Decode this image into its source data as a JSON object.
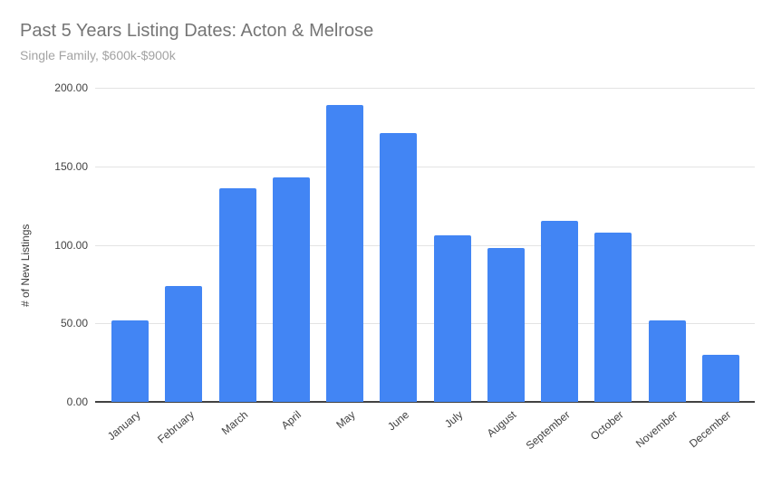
{
  "chart_data": {
    "type": "bar",
    "title": "Past 5 Years Listing Dates: Acton & Melrose",
    "subtitle": "Single Family, $600k-$900k",
    "categories": [
      "January",
      "February",
      "March",
      "April",
      "May",
      "June",
      "July",
      "August",
      "September",
      "October",
      "November",
      "December"
    ],
    "values": [
      52,
      74,
      136,
      143,
      189,
      171,
      106,
      98,
      115,
      108,
      52,
      30
    ],
    "xlabel": "",
    "ylabel": "# of New Listings",
    "ylim": [
      0,
      200
    ],
    "yticks": [
      0,
      50,
      100,
      150,
      200
    ],
    "ytick_labels": [
      "0.00",
      "50.00",
      "100.00",
      "150.00",
      "200.00"
    ],
    "grid": true,
    "legend_position": "none"
  },
  "colors": {
    "bar": "#4285f4",
    "title": "#757575",
    "subtitle": "#a3a3a3",
    "axis_text": "#424242",
    "gridline": "#e3e3e3",
    "baseline": "#424242",
    "background": "#ffffff"
  }
}
